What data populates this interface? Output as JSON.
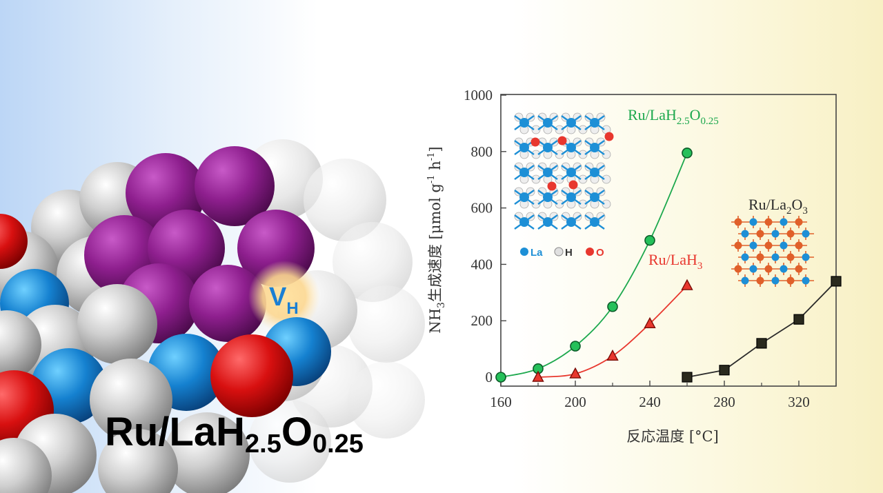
{
  "illustration": {
    "vacancy_label": "V",
    "vacancy_sub": "H",
    "catalyst_label": {
      "parts": [
        "Ru/LaH",
        "2.5",
        "O",
        "0.25"
      ]
    }
  },
  "chart_data": {
    "type": "line",
    "xlabel": "反応温度 [°C]",
    "ylabel_parts": [
      "NH",
      "3",
      "生成速度 [μmol g",
      "-1",
      " h",
      "-1",
      "]"
    ],
    "xlim": [
      160,
      340
    ],
    "ylim": [
      0,
      1000
    ],
    "xticks": [
      160,
      200,
      240,
      280,
      320
    ],
    "yticks": [
      0,
      200,
      400,
      600,
      800,
      1000
    ],
    "series": [
      {
        "name_parts": [
          "Ru/LaH",
          "2.5",
          "O",
          "0.25"
        ],
        "color": "#1ca84d",
        "marker": "circle",
        "x": [
          160,
          180,
          200,
          220,
          240,
          260
        ],
        "y": [
          0,
          30,
          110,
          250,
          485,
          795
        ]
      },
      {
        "name_parts": [
          "Ru/LaH",
          "3"
        ],
        "color": "#e8372e",
        "marker": "triangle",
        "x": [
          180,
          200,
          220,
          240,
          260
        ],
        "y": [
          0,
          12,
          75,
          190,
          325
        ]
      },
      {
        "name_parts": [
          "Ru/La",
          "2",
          "O",
          "3"
        ],
        "color": "#2b2b2b",
        "marker": "square",
        "x": [
          260,
          280,
          300,
          320,
          340
        ],
        "y": [
          0,
          25,
          120,
          205,
          340
        ]
      }
    ],
    "inset_legend": [
      "La",
      "H",
      "O"
    ],
    "inset_legend_colors": [
      "#1d8fd6",
      "#333333",
      "#e8372e"
    ]
  }
}
